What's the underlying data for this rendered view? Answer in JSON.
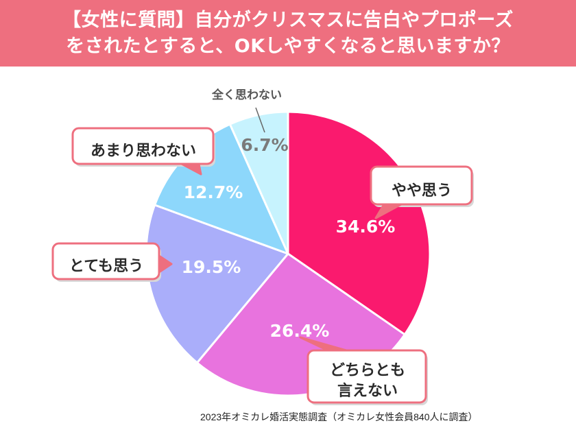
{
  "title": {
    "line1": "【女性に質問】自分がクリスマスに告白やプロポーズ",
    "line2": "をされたとすると、OKしやすくなると思いますか？"
  },
  "source": "2023年オミカレ婚活実態調査（オミカレ女性会員840人に調査）",
  "chart_data": {
    "type": "pie",
    "title": "【女性に質問】自分がクリスマスに告白やプロポーズをされたとすると、OKしやすくなると思いますか？",
    "legend": "callouts",
    "slices": [
      {
        "label": [
          "やや思う"
        ],
        "value": 34.6,
        "value_label": "34.6%",
        "color": "#fa1a6e",
        "text_color": "#ffffff"
      },
      {
        "label": [
          "どちらとも",
          "言えない"
        ],
        "value": 26.4,
        "value_label": "26.4%",
        "color": "#e873de",
        "text_color": "#ffffff"
      },
      {
        "label": [
          "とても思う"
        ],
        "value": 19.5,
        "value_label": "19.5%",
        "color": "#aaaefa",
        "text_color": "#ffffff"
      },
      {
        "label": [
          "あまり思わない"
        ],
        "value": 12.7,
        "value_label": "12.7%",
        "color": "#8dd7fb",
        "text_color": "#ffffff"
      },
      {
        "label": [
          "全く思わない"
        ],
        "value": 6.7,
        "value_label": "6.7%",
        "color": "#c7f3fe",
        "text_color": "#7a7a7a"
      }
    ]
  }
}
